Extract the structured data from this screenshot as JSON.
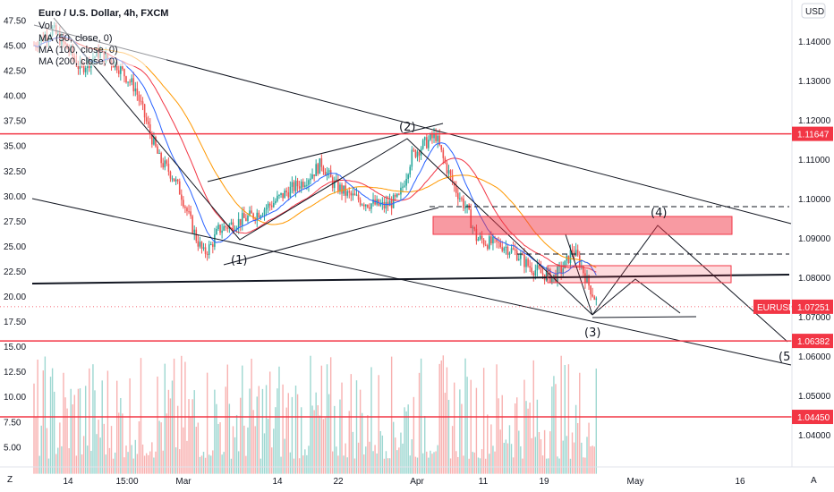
{
  "chart_data": {
    "type": "candlestick",
    "title": "Euro / U.S. Dollar, 4h, FXCM",
    "symbol": "EURUSD",
    "legend_lines": [
      "Vol",
      "MA (50, close, 0)",
      "MA (100, close, 0)",
      "MA (200, close, 0)"
    ],
    "currency_badge": "USD",
    "x_ticks": [
      "14",
      "15:00",
      "Mar",
      "14",
      "22",
      "Apr",
      "11",
      "19",
      "May",
      "16"
    ],
    "right_axis_ticks": [
      "1.14000",
      "1.13000",
      "1.12000",
      "1.11000",
      "1.10000",
      "1.09000",
      "1.08000",
      "1.07000",
      "1.06000",
      "1.05000",
      "1.04000"
    ],
    "left_axis_ticks": [
      "47.50",
      "45.00",
      "42.50",
      "40.00",
      "37.50",
      "35.00",
      "32.50",
      "30.00",
      "27.50",
      "25.00",
      "22.50",
      "20.00",
      "17.50",
      "15.00",
      "12.50",
      "10.00",
      "7.50",
      "5.00"
    ],
    "ylim_price": [
      1.0345,
      1.1505
    ],
    "ylim_left": [
      2.0,
      49.5
    ],
    "horizontal_levels": [
      {
        "value": 1.11647,
        "label": "1.11647",
        "color": "#f23645"
      },
      {
        "value": 1.06382,
        "label": "1.06382",
        "color": "#f23645"
      },
      {
        "value": 1.0445,
        "label": "1.04450",
        "color": "#f23645"
      }
    ],
    "last_price": {
      "label": "EURUSD",
      "value": 1.07251,
      "value_text": "1.07251",
      "color": "#f23645"
    },
    "wave_labels": [
      "(1)",
      "(2)",
      "(3)",
      "(4)",
      "(5"
    ],
    "ma_colors": {
      "ma50": "#2962ff",
      "ma100": "#f23645",
      "ma200": "#ff9800"
    },
    "up_color": "#26a69a",
    "down_color": "#ef5350",
    "close_path": [
      [
        0,
        1.139
      ],
      [
        10,
        1.143
      ],
      [
        20,
        1.137
      ],
      [
        25,
        1.133
      ],
      [
        35,
        1.137
      ],
      [
        45,
        1.134
      ],
      [
        55,
        1.128
      ],
      [
        62,
        1.118
      ],
      [
        68,
        1.11
      ],
      [
        75,
        1.106
      ],
      [
        80,
        1.101
      ],
      [
        85,
        1.094
      ],
      [
        88,
        1.09
      ],
      [
        92,
        1.086
      ],
      [
        96,
        1.088
      ],
      [
        100,
        1.092
      ],
      [
        110,
        1.094
      ],
      [
        120,
        1.096
      ],
      [
        130,
        1.099
      ],
      [
        138,
        1.102
      ],
      [
        145,
        1.104
      ],
      [
        150,
        1.106
      ],
      [
        156,
        1.109
      ],
      [
        162,
        1.104
      ],
      [
        170,
        1.101
      ],
      [
        180,
        1.099
      ],
      [
        190,
        1.098
      ],
      [
        198,
        1.1
      ],
      [
        205,
        1.111
      ],
      [
        212,
        1.114
      ],
      [
        218,
        1.116
      ],
      [
        222,
        1.11
      ],
      [
        228,
        1.103
      ],
      [
        235,
        1.097
      ],
      [
        240,
        1.09
      ],
      [
        245,
        1.089
      ],
      [
        255,
        1.088
      ],
      [
        262,
        1.086
      ],
      [
        268,
        1.083
      ],
      [
        275,
        1.081
      ],
      [
        282,
        1.08
      ],
      [
        288,
        1.083
      ],
      [
        292,
        1.087
      ],
      [
        296,
        1.084
      ],
      [
        300,
        1.079
      ],
      [
        305,
        1.074
      ]
    ],
    "volume": {
      "up_color": "#26a69a",
      "down_color": "#ef5350"
    }
  }
}
